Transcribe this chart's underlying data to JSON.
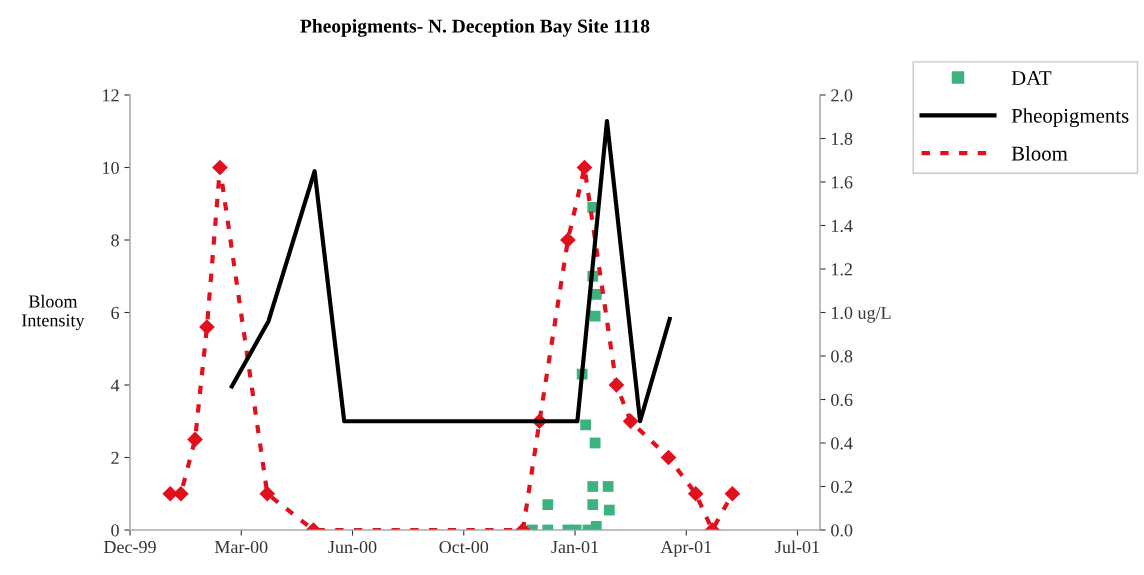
{
  "chart_data": {
    "type": "line",
    "title": "Pheopigments- N. Deception Bay Site 1118",
    "ylabel": "Bloom\nIntensity",
    "xlim": [
      "1999-12-25",
      "2001-07-30"
    ],
    "xticks": [
      {
        "value": "1999-12-25",
        "label": "Dec-99"
      },
      {
        "value": "2000-03-28",
        "label": "Mar-00"
      },
      {
        "value": "2000-06-30",
        "label": "Jun-00"
      },
      {
        "value": "2000-10-02",
        "label": "Oct-00"
      },
      {
        "value": "2001-01-04",
        "label": "Jan-01"
      },
      {
        "value": "2001-04-08",
        "label": "Apr-01"
      },
      {
        "value": "2001-07-11",
        "label": "Jul-01"
      }
    ],
    "ylim": [
      0,
      12
    ],
    "yticks": [
      0,
      2,
      4,
      6,
      8,
      10,
      12
    ],
    "y2lim": [
      0,
      2.0
    ],
    "y2ticks": [
      {
        "value": 0,
        "label": "0.0"
      },
      {
        "value": 0.2,
        "label": "0.2"
      },
      {
        "value": 0.4,
        "label": "0.4"
      },
      {
        "value": 0.6,
        "label": "0.6"
      },
      {
        "value": 0.8,
        "label": "0.8"
      },
      {
        "value": 1.0,
        "label": "1.0 ug/L"
      },
      {
        "value": 1.2,
        "label": "1.2"
      },
      {
        "value": 1.4,
        "label": "1.4"
      },
      {
        "value": 1.6,
        "label": "1.6"
      },
      {
        "value": 1.8,
        "label": "1.8"
      },
      {
        "value": 2.0,
        "label": "2.0"
      }
    ],
    "grid": false,
    "legend": "top right",
    "series": [
      {
        "name": "DAT",
        "type": "scatter",
        "marker": "square",
        "color": "#3cb37f",
        "x": [
          "2000-11-29",
          "2000-12-12",
          "2000-12-12",
          "2000-12-29",
          "2001-01-05",
          "2001-01-15",
          "2001-01-10",
          "2001-01-13",
          "2001-01-19",
          "2001-01-19",
          "2001-01-22",
          "2001-01-21",
          "2001-01-21",
          "2001-01-19",
          "2001-01-19",
          "2001-01-22",
          "2001-02-01",
          "2001-02-02"
        ],
        "values": [
          0,
          0,
          0.7,
          0,
          0,
          0,
          4.3,
          2.9,
          8.9,
          7.0,
          6.5,
          5.9,
          2.4,
          1.2,
          0.7,
          0.1,
          1.2,
          0.55
        ]
      },
      {
        "name": "Pheopigments",
        "axis": "y2",
        "marker": "none",
        "line_style": "solid",
        "color": "#000000",
        "x": [
          "2000-03-20",
          "2000-04-20",
          "2000-05-29",
          "2000-06-23",
          "2001-01-06",
          "2001-01-31",
          "2001-02-28",
          "2001-03-25"
        ],
        "values": [
          0.66,
          0.96,
          1.65,
          0.5,
          0.5,
          1.88,
          0.5,
          0.97
        ]
      },
      {
        "name": "Bloom",
        "marker": "diamond",
        "line_style": "dotted",
        "color": "#e0101c",
        "x": [
          "2000-01-28",
          "2000-02-06",
          "2000-02-18",
          "2000-02-28",
          "2000-03-10",
          "2000-04-19",
          "2000-05-28",
          "2000-11-21",
          "2000-12-05",
          "2000-12-29",
          "2001-01-12",
          "2001-02-08",
          "2001-02-20",
          "2001-03-24",
          "2001-04-16",
          "2001-04-30",
          "2001-05-17"
        ],
        "values": [
          1.0,
          1.0,
          2.5,
          5.6,
          10.0,
          1.0,
          0,
          0,
          3.0,
          8.0,
          10.0,
          4.0,
          3.0,
          2.0,
          1.0,
          0,
          1.0
        ]
      }
    ]
  }
}
